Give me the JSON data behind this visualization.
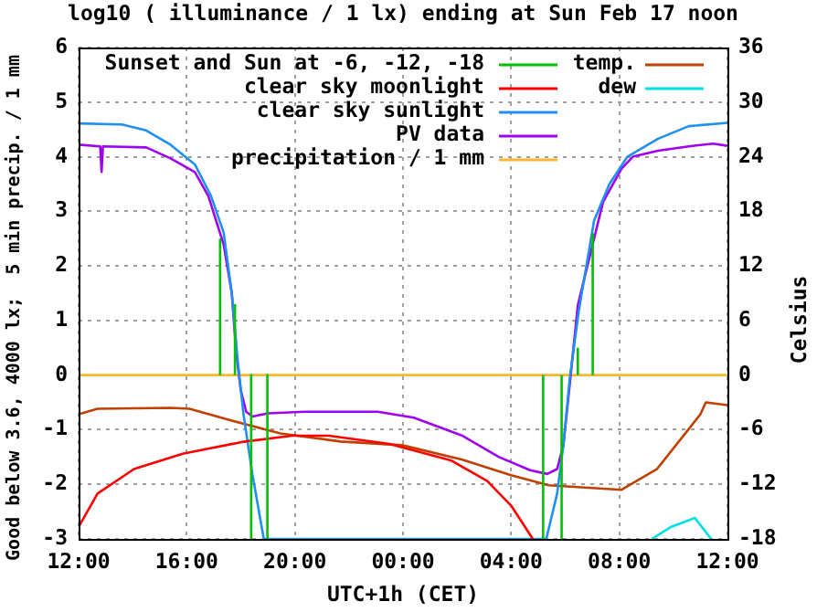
{
  "chart_data": {
    "type": "line",
    "title": "log10 ( illuminance / 1 lx) ending at Sun Feb 17 noon",
    "xlabel": "UTC+1h (CET)",
    "ylabel": "Good below 3.6, 4000 lx;  5 min precip. / 1 mm",
    "y2label": "Celsius",
    "xlim": [
      "--02-16T12:00",
      "--02-17T12:00"
    ],
    "xticks": [
      {
        "value": "--02-16T12:00",
        "label": "12:00"
      },
      {
        "value": "--02-16T16:00",
        "label": "16:00"
      },
      {
        "value": "--02-16T20:00",
        "label": "20:00"
      },
      {
        "value": "--02-17T00:00",
        "label": "00:00"
      },
      {
        "value": "--02-17T04:00",
        "label": "04:00"
      },
      {
        "value": "--02-17T08:00",
        "label": "08:00"
      },
      {
        "value": "--02-17T12:00",
        "label": "12:00"
      }
    ],
    "ylim": [
      -3,
      6
    ],
    "yticks": [
      -3,
      -2,
      -1,
      0,
      1,
      2,
      3,
      4,
      5,
      6
    ],
    "y2lim": [
      -18,
      36
    ],
    "y2ticks": [
      -18,
      -12,
      -6,
      0,
      6,
      12,
      18,
      24,
      30,
      36
    ],
    "grid": true,
    "legend": "top",
    "marker": "none",
    "line_style": "solid",
    "series": [
      {
        "name": "Sunset and Sun at -6, -12, -18",
        "color": "#00c000",
        "x": [
          "--02-16T17:14",
          "--02-16T17:14"
        ],
        "values": [
          0,
          2.5
        ]
      },
      {
        "color": "#00c000",
        "x": [
          "--02-16T17:47",
          "--02-16T17:47"
        ],
        "values": [
          0,
          1.3
        ]
      },
      {
        "color": "#00c000",
        "x": [
          "--02-16T18:23",
          "--02-16T18:23"
        ],
        "values": [
          0,
          -3
        ]
      },
      {
        "color": "#00c000",
        "x": [
          "--02-16T18:59",
          "--02-16T18:59"
        ],
        "values": [
          0,
          -3
        ]
      },
      {
        "color": "#00c000",
        "x": [
          "--02-17T05:11",
          "--02-17T05:11"
        ],
        "values": [
          -3,
          0
        ]
      },
      {
        "color": "#00c000",
        "x": [
          "--02-17T05:52",
          "--02-17T05:52"
        ],
        "values": [
          -3,
          0
        ]
      },
      {
        "color": "#00c000",
        "x": [
          "--02-17T06:28",
          "--02-17T06:28"
        ],
        "values": [
          0,
          0.5
        ]
      },
      {
        "color": "#00c000",
        "x": [
          "--02-17T07:01",
          "--02-17T07:01"
        ],
        "values": [
          0,
          2.6
        ]
      },
      {
        "name": "clear sky moonlight",
        "color": "#ff0000",
        "x": [
          "--02-16T12:00",
          "--02-16T12:42",
          "--02-16T14:03",
          "--02-16T15:51",
          "--02-16T18:06",
          "--02-16T19:54",
          "--02-16T21:15",
          "--02-16T23:30",
          "--02-17T01:46",
          "--02-17T03:07",
          "--02-17T04:00",
          "--02-17T04:48"
        ],
        "values": [
          -2.78,
          -2.17,
          -1.72,
          -1.44,
          -1.22,
          -1.11,
          -1.11,
          -1.26,
          -1.56,
          -1.94,
          -2.39,
          -3
        ]
      },
      {
        "name": "clear sky sunlight",
        "color": "#2090f0",
        "x": [
          "--02-16T12:00",
          "--02-16T13:36",
          "--02-16T14:30",
          "--02-16T15:24",
          "--02-16T16:18",
          "--02-16T16:54",
          "--02-16T17:22",
          "--02-16T17:40",
          "--02-16T17:53",
          "--02-16T18:06",
          "--02-16T18:26",
          "--02-16T18:51",
          "--02-17T05:18",
          "--02-17T05:42",
          "--02-17T05:56",
          "--02-17T06:10",
          "--02-17T06:30",
          "--02-17T07:04",
          "--02-17T07:38",
          "--02-17T08:18",
          "--02-17T09:26",
          "--02-17T10:34",
          "--02-17T12:00"
        ],
        "values": [
          4.61,
          4.59,
          4.48,
          4.22,
          3.86,
          3.28,
          2.61,
          1.5,
          0.28,
          -0.72,
          -1.83,
          -3,
          -3,
          -2.17,
          -1.28,
          -0.06,
          1.17,
          2.83,
          3.5,
          4.0,
          4.33,
          4.56,
          4.62
        ]
      },
      {
        "name": "PV data",
        "color": "#a000f0",
        "x": [
          "--02-16T12:00",
          "--02-16T12:48",
          "--02-16T12:51",
          "--02-16T12:54",
          "--02-16T14:30",
          "--02-16T15:24",
          "--02-16T16:18",
          "--02-16T16:48",
          "--02-16T17:22",
          "--02-16T17:40",
          "--02-16T17:50",
          "--02-16T18:00",
          "--02-16T18:12",
          "--02-16T18:26",
          "--02-16T19:00",
          "--02-16T20:22",
          "--02-16T23:04",
          "--02-17T00:24",
          "--02-17T02:12",
          "--02-17T03:33",
          "--02-17T04:42",
          "--02-17T05:20",
          "--02-17T05:42",
          "--02-17T05:56",
          "--02-17T06:10",
          "--02-17T06:28",
          "--02-17T07:04",
          "--02-17T07:24",
          "--02-17T08:05",
          "--02-17T08:30",
          "--02-17T09:26",
          "--02-17T10:34",
          "--02-17T11:28",
          "--02-17T12:00"
        ],
        "values": [
          4.22,
          4.19,
          3.72,
          4.19,
          4.17,
          3.97,
          3.72,
          3.28,
          2.39,
          1.5,
          0.39,
          -0.28,
          -0.67,
          -0.76,
          -0.7,
          -0.67,
          -0.67,
          -0.78,
          -1.11,
          -1.5,
          -1.74,
          -1.81,
          -1.72,
          -1.28,
          -0.17,
          1.28,
          2.5,
          3.17,
          3.78,
          4.0,
          4.11,
          4.19,
          4.24,
          4.2
        ]
      },
      {
        "name": "precipitation / 1 mm",
        "color": "#f8b830",
        "x": [
          "--02-16T12:00",
          "--02-17T12:00"
        ],
        "values": [
          0,
          0
        ]
      },
      {
        "name": "temp.",
        "color": "#c04000",
        "axis": "y2",
        "x": [
          "--02-16T12:00",
          "--02-16T12:42",
          "--02-16T15:24",
          "--02-16T16:06",
          "--02-16T17:40",
          "--02-16T19:28",
          "--02-16T21:42",
          "--02-16T23:58",
          "--02-17T02:12",
          "--02-17T04:00",
          "--02-17T05:23",
          "--02-17T08:05",
          "--02-17T09:24",
          "--02-17T11:00",
          "--02-17T11:12",
          "--02-17T12:00"
        ],
        "values": [
          -4.3,
          -3.7,
          -3.6,
          -3.7,
          -5.0,
          -6.4,
          -7.3,
          -7.7,
          -9.3,
          -11,
          -12.1,
          -12.6,
          -10.3,
          -4.3,
          -3.0,
          -3.3
        ]
      },
      {
        "name": "dew",
        "color": "#00e0e0",
        "axis": "y2",
        "x": [
          "--02-17T09:12",
          "--02-17T09:54",
          "--02-17T10:48",
          "--02-17T11:24"
        ],
        "values": [
          -18,
          -16.7,
          -15.7,
          -18
        ]
      }
    ]
  }
}
